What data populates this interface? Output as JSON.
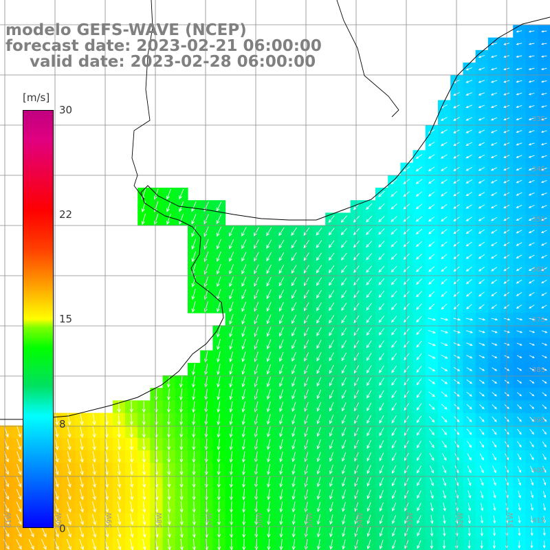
{
  "header": {
    "title_line1": "modelo GEFS-WAVE (NCEP)",
    "title_line2": "forecast date: 2023-02-21 06:00:00",
    "title_line3": "valid date: 2023-02-28 06:00:00"
  },
  "colorbar": {
    "unit": "[m/s]",
    "labels": [
      "30",
      "22",
      "15",
      "8",
      "0"
    ],
    "range": [
      0,
      30
    ],
    "colors": [
      "#0000ff",
      "#0080ff",
      "#00ffff",
      "#00ff00",
      "#ffff00",
      "#ff8000",
      "#ff0000",
      "#c00080"
    ]
  },
  "map": {
    "lat_labels": [
      "33S",
      "34S",
      "35S",
      "36S",
      "37S",
      "38S",
      "39S",
      "40S",
      "41S"
    ],
    "lon_labels": [
      "61W",
      "60W",
      "59W",
      "58W",
      "57W",
      "56W",
      "55W",
      "54W",
      "53W",
      "52W",
      "51W"
    ],
    "land_color": "#ffffff",
    "grid_color": "#808080",
    "arrow_color": "#ffffff"
  }
}
